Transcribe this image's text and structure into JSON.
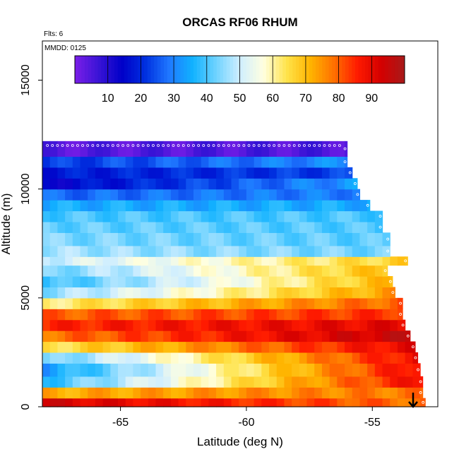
{
  "chart_data": {
    "type": "heatmap",
    "title": "ORCAS RF06 RHUM",
    "xlabel": "Latitude (deg N)",
    "ylabel": "Altitude (m)",
    "note_flts": "Flts: 6",
    "note_mmdd": "MMDD: 0125",
    "xlim": [
      -68.1,
      -52.4
    ],
    "ylim": [
      0,
      16800
    ],
    "x_ticks": [
      -65,
      -60,
      -55
    ],
    "x_tick_labels": [
      "-65",
      "-60",
      "-55"
    ],
    "y_ticks": [
      0,
      5000,
      10000,
      15000
    ],
    "y_tick_labels": [
      "0",
      "5000",
      "10000",
      "15000"
    ],
    "colorbar": {
      "range": [
        0,
        100
      ],
      "ticks": [
        10,
        20,
        30,
        40,
        50,
        60,
        70,
        80,
        90
      ],
      "tick_labels": [
        "10",
        "20",
        "30",
        "40",
        "50",
        "60",
        "70",
        "80",
        "90"
      ]
    },
    "grid": false,
    "legend": "none",
    "colors": {
      "stops": [
        "#7a1ee8",
        "#3a14d6",
        "#0000c8",
        "#0030e0",
        "#1f78ff",
        "#11b2ff",
        "#6fd3ff",
        "#cfeeff",
        "#ffffe0",
        "#ffe34a",
        "#ffb400",
        "#ff7000",
        "#ff1a00",
        "#d40000",
        "#a81a1a"
      ]
    },
    "grid_x_start": -68.1,
    "grid_dx": 0.3,
    "grid_alt_bands": [
      {
        "bottom": 0,
        "top": 400,
        "rh": 93,
        "xmax": -52.9,
        "grad": -1
      },
      {
        "bottom": 400,
        "top": 900,
        "rh": 72,
        "xmax": -53.0,
        "grad": 0.4
      },
      {
        "bottom": 900,
        "top": 1400,
        "rh": 38,
        "xmax": -53.0,
        "grad": 3.4
      },
      {
        "bottom": 1400,
        "top": 2000,
        "rh": 33,
        "xmax": -53.1,
        "grad": 3.8
      },
      {
        "bottom": 2000,
        "top": 2500,
        "rh": 42,
        "xmax": -53.2,
        "grad": 3.2
      },
      {
        "bottom": 2500,
        "top": 3000,
        "rh": 64,
        "xmax": -53.3,
        "grad": 1.8
      },
      {
        "bottom": 3000,
        "top": 3500,
        "rh": 78,
        "xmax": -53.5,
        "grad": 1.2
      },
      {
        "bottom": 3500,
        "top": 4000,
        "rh": 85,
        "xmax": -53.7,
        "grad": 0.4
      },
      {
        "bottom": 4000,
        "top": 4500,
        "rh": 80,
        "xmax": -53.8,
        "grad": 0.3
      },
      {
        "bottom": 4500,
        "top": 5000,
        "rh": 62,
        "xmax": -53.8,
        "grad": 1.3
      },
      {
        "bottom": 5000,
        "top": 5500,
        "rh": 45,
        "xmax": -54.1,
        "grad": 2.1
      },
      {
        "bottom": 5500,
        "top": 6000,
        "rh": 38,
        "xmax": -54.2,
        "grad": 2.4
      },
      {
        "bottom": 6000,
        "top": 6500,
        "rh": 43,
        "xmax": -54.4,
        "grad": 2.0
      },
      {
        "bottom": 6500,
        "top": 6900,
        "rh": 50,
        "xmax": -53.6,
        "grad": 1.2
      },
      {
        "bottom": 6900,
        "top": 7400,
        "rh": 47,
        "xmax": -54.3,
        "grad": -0.3
      },
      {
        "bottom": 7400,
        "top": 8000,
        "rh": 44,
        "xmax": -54.3,
        "grad": -0.2
      },
      {
        "bottom": 8000,
        "top": 8500,
        "rh": 42,
        "xmax": -54.6,
        "grad": -0.1
      },
      {
        "bottom": 8500,
        "top": 9000,
        "rh": 40,
        "xmax": -54.6,
        "grad": 0
      },
      {
        "bottom": 9000,
        "top": 9500,
        "rh": 35,
        "xmax": -55.1,
        "grad": 0
      },
      {
        "bottom": 9500,
        "top": 10000,
        "rh": 27,
        "xmax": -55.5,
        "grad": 0.2
      },
      {
        "bottom": 10000,
        "top": 10500,
        "rh": 14,
        "xmax": -55.6,
        "grad": 1.5
      },
      {
        "bottom": 10500,
        "top": 11000,
        "rh": 18,
        "xmax": -55.8,
        "grad": 0.4
      },
      {
        "bottom": 11000,
        "top": 11500,
        "rh": 22,
        "xmax": -56.0,
        "grad": 0.8
      },
      {
        "bottom": 11500,
        "top": 12200,
        "rh": 4,
        "xmax": -56.0,
        "grad": 0.1
      }
    ]
  }
}
